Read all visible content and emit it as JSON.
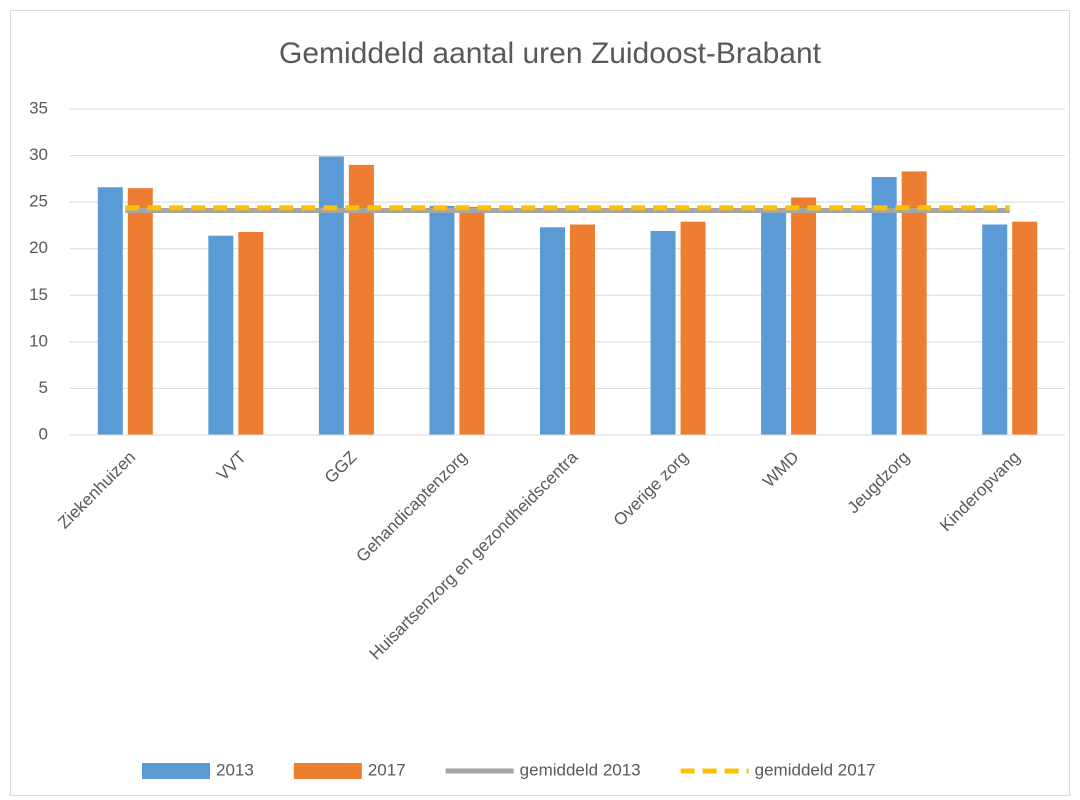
{
  "chart_data": {
    "type": "bar",
    "title": "Gemiddeld aantal uren Zuidoost-Brabant",
    "categories": [
      "Ziekenhuizen",
      "VVT",
      "GGZ",
      "Gehandicaptenzorg",
      "Huisartsenzorg en gezondheidscentra",
      "Overige zorg",
      "WMD",
      "Jeugdzorg",
      "Kinderopvang"
    ],
    "series": [
      {
        "name": "2013",
        "type": "bar",
        "color": "#5b9bd5",
        "values": [
          26.6,
          21.4,
          29.9,
          24.6,
          22.3,
          21.9,
          24.3,
          27.7,
          22.6
        ]
      },
      {
        "name": "2017",
        "type": "bar",
        "color": "#ed7d31",
        "values": [
          26.5,
          21.8,
          29.0,
          24.5,
          22.6,
          22.9,
          25.5,
          28.3,
          22.9
        ]
      },
      {
        "name": "gemiddeld 2013",
        "type": "line",
        "dash": false,
        "color": "#a5a5a5",
        "values": [
          24.1,
          24.1,
          24.1,
          24.1,
          24.1,
          24.1,
          24.1,
          24.1,
          24.1
        ]
      },
      {
        "name": "gemiddeld 2017",
        "type": "line",
        "dash": true,
        "color": "#ffc000",
        "values": [
          24.4,
          24.4,
          24.4,
          24.4,
          24.4,
          24.4,
          24.4,
          24.4,
          24.4
        ]
      }
    ],
    "ylim": [
      0,
      35
    ],
    "yticks": [
      0,
      5,
      10,
      15,
      20,
      25,
      30,
      35
    ],
    "grid": true,
    "legend": "bottom"
  }
}
